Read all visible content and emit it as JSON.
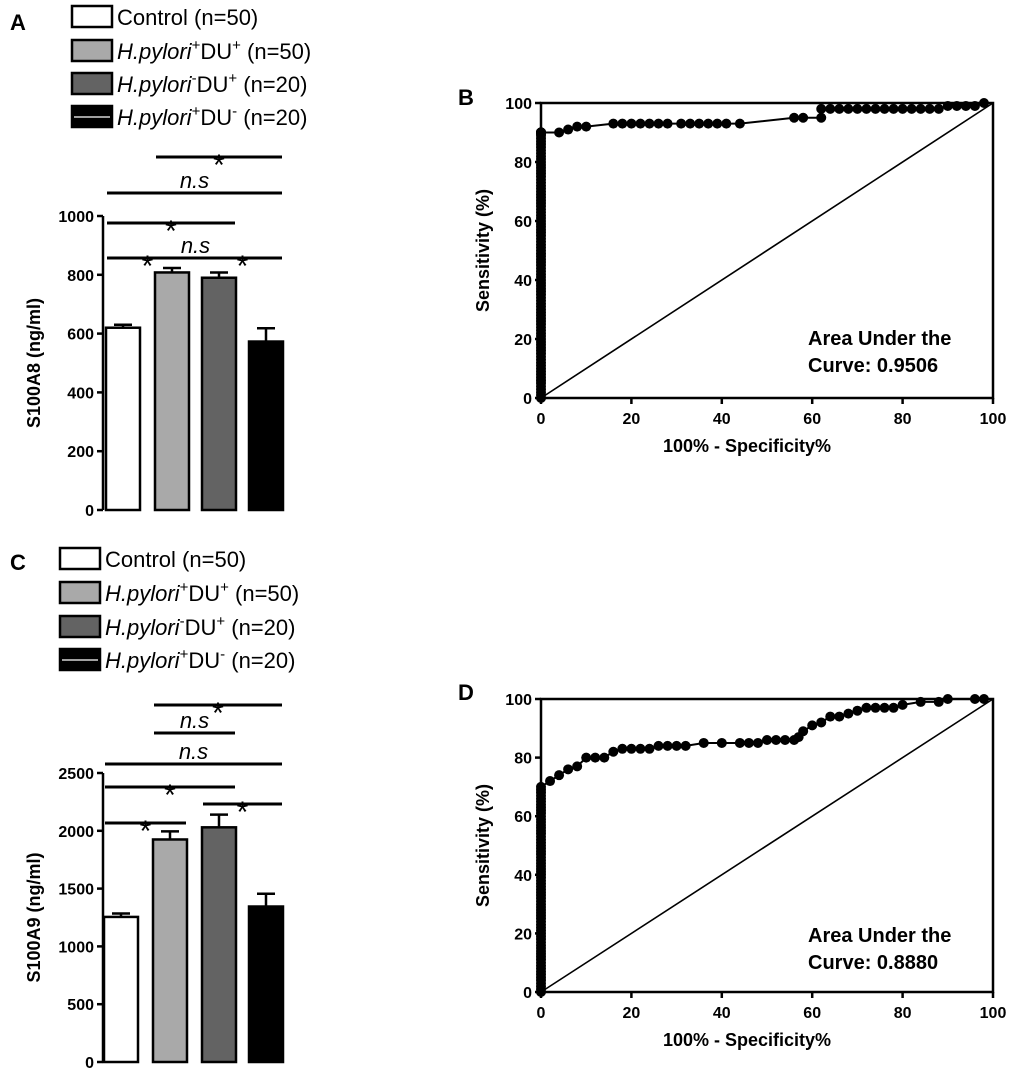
{
  "colors": {
    "control": "#ffffff",
    "hp_du": "#a9a9a9",
    "hpneg_du": "#636363",
    "hp_duneg": "#000000",
    "ink": "#000000"
  },
  "legend": {
    "control": {
      "label": "Control",
      "n": "(n=50)"
    },
    "hp_du": {
      "italic": "H.pylori",
      "sup1": "+",
      "mid": "DU",
      "sup2": "+",
      "n": " (n=50)"
    },
    "hpneg_du": {
      "italic": "H.pylori",
      "sup1": "-",
      "mid": "DU",
      "sup2": "+",
      "n": " (n=20)"
    },
    "hp_duneg": {
      "italic": "H.pylori",
      "sup1": "+",
      "mid": "DU",
      "sup2": "-",
      "n": " (n=20)"
    }
  },
  "chart_data": [
    {
      "panel": "A",
      "type": "bar",
      "ylabel": "S100A8 (ng/ml)",
      "ylim": [
        0,
        1000
      ],
      "yticks": [
        "0",
        "200",
        "400",
        "600",
        "800",
        "1000"
      ],
      "categories": [
        "Control (n=50)",
        "H.pylori+DU+ (n=50)",
        "H.pylori-DU+ (n=20)",
        "H.pylori+DU- (n=20)"
      ],
      "values": [
        620,
        808,
        790,
        573
      ],
      "errors": [
        10,
        15,
        18,
        45
      ],
      "significance": [
        {
          "from": 0,
          "to": 1,
          "label": "*"
        },
        {
          "from": 1,
          "to": 2,
          "label": "n.s"
        },
        {
          "from": 2,
          "to": 3,
          "label": "*"
        },
        {
          "from": 0,
          "to": 2,
          "label": "*"
        },
        {
          "from": 0,
          "to": 3,
          "label": "n.s"
        },
        {
          "from": 1,
          "to": 3,
          "label": "*"
        }
      ]
    },
    {
      "panel": "B",
      "type": "line",
      "xlabel": "100%  - Specificity%",
      "ylabel": "Sensitivity (%)",
      "xlim": [
        0,
        100
      ],
      "ylim": [
        0,
        100
      ],
      "xticks": [
        "0",
        "20",
        "40",
        "60",
        "80",
        "100"
      ],
      "yticks": [
        "0",
        "20",
        "40",
        "60",
        "80",
        "100"
      ],
      "annotation_line1": "Area Under the",
      "annotation_line2": "Curve: 0.9506",
      "auc": 0.9506,
      "x": [
        0,
        0,
        0,
        0,
        0,
        0,
        0,
        0,
        0,
        0,
        0,
        0,
        0,
        0,
        0,
        0,
        0,
        0,
        0,
        0,
        0,
        0,
        0,
        0,
        0,
        0,
        0,
        0,
        0,
        0,
        0,
        0,
        0,
        0,
        0,
        0,
        0,
        0,
        0,
        0,
        0,
        0,
        0,
        0,
        0,
        0,
        0,
        0,
        0,
        0,
        0,
        0,
        0,
        0,
        0,
        0,
        0,
        0,
        0,
        0,
        0,
        0,
        0,
        0,
        0,
        0,
        0,
        0,
        0,
        0,
        0,
        0,
        0,
        0,
        0,
        0,
        0,
        0,
        0,
        0,
        0,
        0,
        0,
        0,
        0,
        0,
        0,
        0,
        0,
        0,
        0,
        0,
        0,
        0,
        0,
        0,
        0,
        0,
        0,
        0,
        0,
        0,
        0,
        0,
        0,
        0,
        0,
        0,
        0,
        0,
        4,
        6,
        8,
        10,
        16,
        18,
        20,
        22,
        24,
        26,
        28,
        31,
        33,
        35,
        37,
        39,
        41,
        44,
        56,
        58,
        62,
        62,
        64,
        66,
        68,
        70,
        72,
        74,
        76,
        78,
        80,
        82,
        84,
        86,
        88,
        90,
        92,
        94,
        96,
        98
      ],
      "y": [
        0,
        1,
        2,
        3,
        4,
        5,
        6,
        7,
        8,
        9,
        10,
        11,
        12,
        13,
        14,
        15,
        16,
        17,
        18,
        19,
        20,
        21,
        22,
        23,
        24,
        25,
        26,
        27,
        28,
        29,
        30,
        31,
        32,
        33,
        34,
        35,
        36,
        37,
        38,
        39,
        40,
        41,
        42,
        43,
        44,
        45,
        46,
        47,
        48,
        49,
        50,
        51,
        52,
        53,
        54,
        55,
        56,
        57,
        58,
        59,
        60,
        61,
        62,
        63,
        64,
        65,
        66,
        67,
        68,
        69,
        70,
        71,
        72,
        73,
        74,
        75,
        76,
        77,
        78,
        79,
        80,
        81,
        82,
        83,
        84,
        85,
        86,
        87,
        88,
        89,
        90,
        90,
        90,
        90,
        90,
        90,
        90,
        90,
        90,
        90,
        90,
        90,
        90,
        90,
        90,
        90,
        90,
        90,
        90,
        90,
        90,
        91,
        92,
        92,
        93,
        93,
        93,
        93,
        93,
        93,
        93,
        93,
        93,
        93,
        93,
        93,
        93,
        93,
        95,
        95,
        95,
        98,
        98,
        98,
        98,
        98,
        98,
        98,
        98,
        98,
        98,
        98,
        98,
        98,
        98,
        99,
        99,
        99,
        99,
        100
      ]
    },
    {
      "panel": "C",
      "type": "bar",
      "ylabel": "S100A9 (ng/ml)",
      "ylim": [
        0,
        2500
      ],
      "yticks": [
        "0",
        "500",
        "1000",
        "1500",
        "2000",
        "2500"
      ],
      "categories": [
        "Control (n=50)",
        "H.pylori+DU+ (n=50)",
        "H.pylori-DU+ (n=20)",
        "H.pylori+DU- (n=20)"
      ],
      "values": [
        1255,
        1925,
        2030,
        1345
      ],
      "errors": [
        30,
        70,
        110,
        110
      ],
      "significance": [
        {
          "from": 0,
          "to": 1,
          "label": "*"
        },
        {
          "from": 2,
          "to": 3,
          "label": "*"
        },
        {
          "from": 0,
          "to": 2,
          "label": "*"
        },
        {
          "from": 0,
          "to": 3,
          "label": "n.s"
        },
        {
          "from": 1,
          "to": 2,
          "label": "n.s"
        },
        {
          "from": 1,
          "to": 3,
          "label": "*"
        }
      ]
    },
    {
      "panel": "D",
      "type": "line",
      "xlabel": "100%  - Specificity%",
      "ylabel": "Sensitivity (%)",
      "xlim": [
        0,
        100
      ],
      "ylim": [
        0,
        100
      ],
      "xticks": [
        "0",
        "20",
        "40",
        "60",
        "80",
        "100"
      ],
      "yticks": [
        "0",
        "20",
        "40",
        "60",
        "80",
        "100"
      ],
      "annotation_line1": "Area Under the",
      "annotation_line2": "Curve: 0.8880",
      "auc": 0.888,
      "x": [
        0,
        0,
        0,
        0,
        0,
        0,
        0,
        0,
        0,
        0,
        0,
        0,
        0,
        0,
        0,
        0,
        0,
        0,
        0,
        0,
        0,
        0,
        0,
        0,
        0,
        0,
        0,
        0,
        0,
        0,
        0,
        0,
        0,
        0,
        0,
        0,
        0,
        0,
        0,
        0,
        0,
        0,
        0,
        0,
        0,
        0,
        0,
        0,
        0,
        0,
        0,
        0,
        0,
        0,
        0,
        0,
        0,
        0,
        0,
        0,
        0,
        0,
        0,
        0,
        0,
        0,
        0,
        0,
        0,
        0,
        0,
        2,
        4,
        6,
        8,
        10,
        12,
        14,
        16,
        18,
        20,
        22,
        24,
        26,
        28,
        30,
        32,
        36,
        40,
        44,
        46,
        48,
        50,
        52,
        54,
        56,
        57,
        58,
        60,
        62,
        64,
        66,
        68,
        70,
        72,
        74,
        76,
        78,
        80,
        84,
        88,
        90,
        96,
        98
      ],
      "y": [
        0,
        1,
        2,
        3,
        4,
        5,
        6,
        7,
        8,
        9,
        10,
        11,
        12,
        13,
        14,
        15,
        16,
        17,
        18,
        19,
        20,
        21,
        22,
        23,
        24,
        25,
        26,
        27,
        28,
        29,
        30,
        31,
        32,
        33,
        34,
        35,
        36,
        37,
        38,
        39,
        40,
        41,
        42,
        43,
        44,
        45,
        46,
        47,
        48,
        49,
        50,
        51,
        52,
        53,
        54,
        55,
        56,
        57,
        58,
        59,
        60,
        61,
        62,
        63,
        64,
        65,
        66,
        67,
        68,
        69,
        70,
        72,
        74,
        76,
        77,
        80,
        80,
        80,
        82,
        83,
        83,
        83,
        83,
        84,
        84,
        84,
        84,
        85,
        85,
        85,
        85,
        85,
        86,
        86,
        86,
        86,
        87,
        89,
        91,
        92,
        94,
        94,
        95,
        96,
        97,
        97,
        97,
        97,
        98,
        99,
        99,
        100,
        100,
        100
      ]
    }
  ]
}
